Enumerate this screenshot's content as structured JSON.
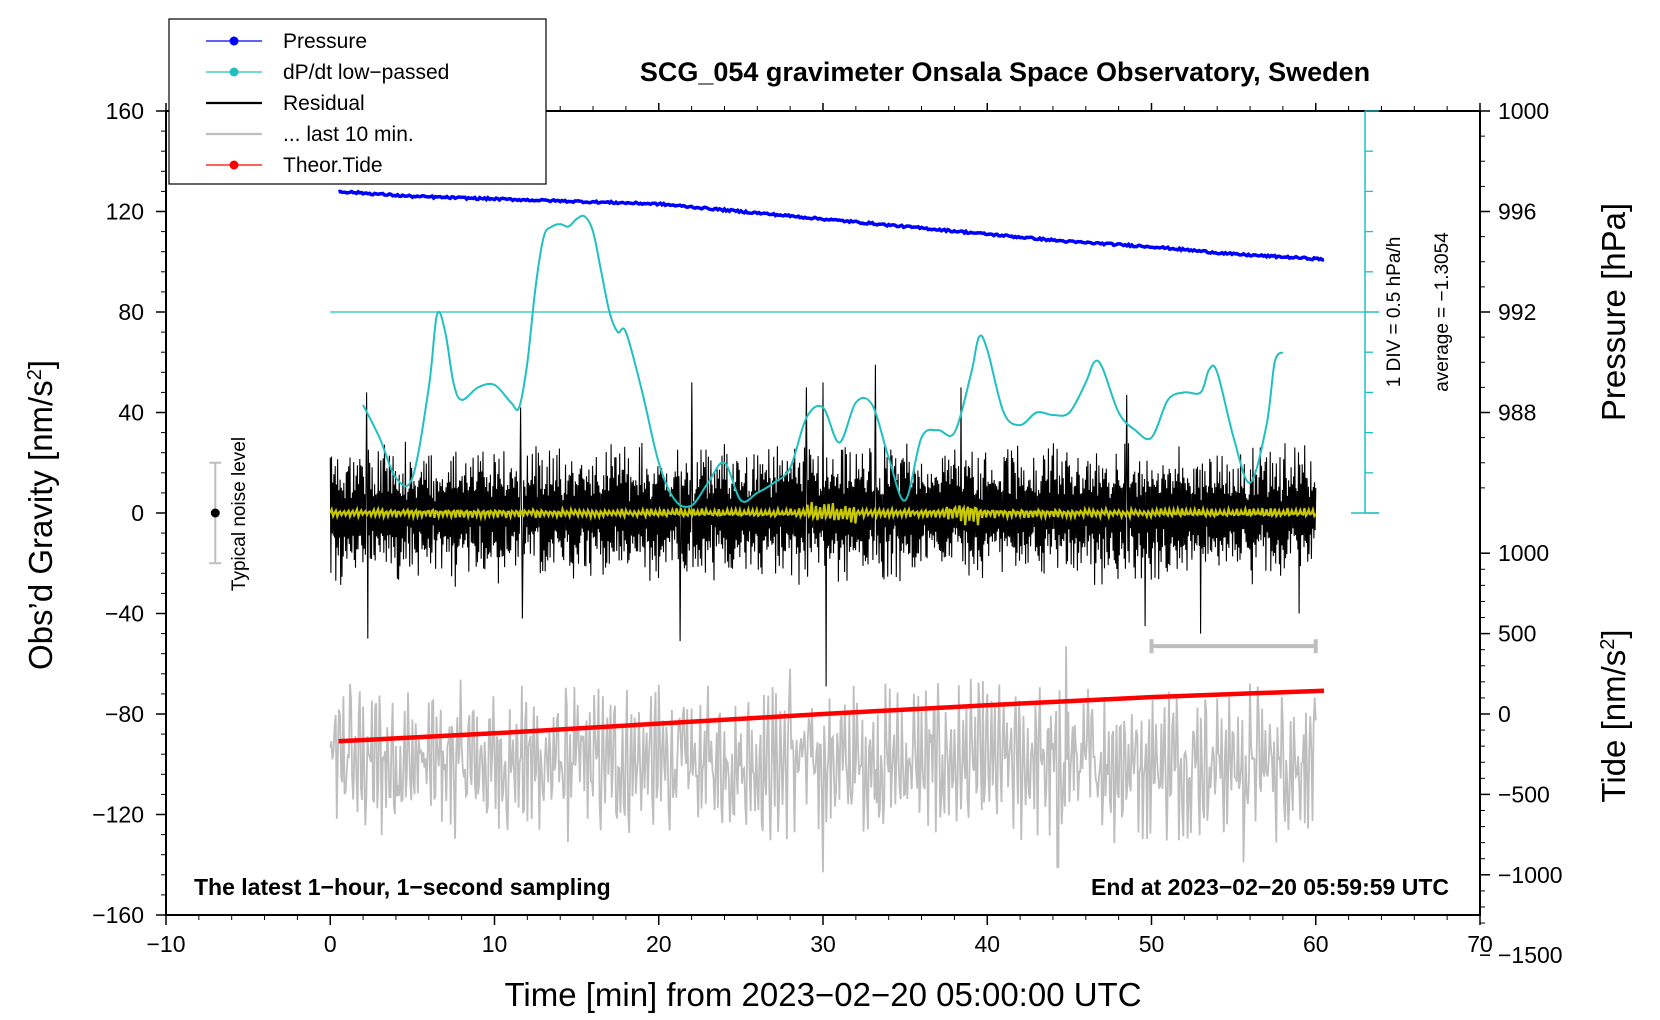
{
  "chart_data": {
    "type": "line",
    "title": "SCG_054 gravimeter Onsala Space Observatory, Sweden",
    "xlabel": "Time [min] from 2023−02−20 05:00:00 UTC",
    "ylabel_left": "Obs’d Gravity [nm/s",
    "ylabel_left_sup": "2",
    "ylabel_left_close": "]",
    "ylabel_pressure": "Pressure [hPa]",
    "ylabel_tide": "Tide [nm/s",
    "ylabel_tide_sup": "2",
    "ylabel_tide_close": "]",
    "xlim": [
      -10,
      70
    ],
    "ylim": [
      -160,
      160
    ],
    "xticks": [
      -10,
      0,
      10,
      20,
      30,
      40,
      50,
      60,
      70
    ],
    "xtick_labels": [
      "−10",
      "0",
      "10",
      "20",
      "30",
      "40",
      "50",
      "60",
      "70"
    ],
    "yticks": [
      -160,
      -120,
      -80,
      -40,
      0,
      40,
      80,
      120,
      160
    ],
    "ytick_labels": [
      "−160",
      "−120",
      "−80",
      "−40",
      "0",
      "40",
      "80",
      "120",
      "160"
    ],
    "pressure_axis": {
      "ticks": [
        988,
        992,
        996,
        1000
      ],
      "labels": [
        "988",
        "992",
        "996",
        "1000"
      ],
      "gravity_equiv_at_988": 40,
      "gravity_per_hPa": 10
    },
    "tide_axis": {
      "ticks": [
        -1500,
        -1000,
        -500,
        0,
        500,
        1000
      ],
      "labels": [
        "−1500",
        "−1000",
        "−500",
        "0",
        "500",
        "1000"
      ],
      "gravity_equiv_at_0": -80,
      "gravity_per_unit": 0.064
    },
    "dpdt_scale": {
      "label": "1 DIV = 0.5 hPa/h",
      "average_label": "average = −1.3054",
      "x": 63,
      "baseline": 0,
      "top": 160,
      "div": 16,
      "average_line": 80
    },
    "legend": [
      {
        "label": "Pressure",
        "color": "#0000ff",
        "marker": true
      },
      {
        "label": "dP/dt low−passed",
        "color": "#20c0c0",
        "marker": true
      },
      {
        "label": "Residual",
        "color": "#000000",
        "marker": false
      },
      {
        "label": "... last 10 min.",
        "color": "#bebebe",
        "marker": false
      },
      {
        "label": "Theor.Tide",
        "color": "#ff0000",
        "marker": true
      }
    ],
    "legend_position": "top-left",
    "noise_label": "Typical noise level",
    "noise_bar": {
      "x": -7,
      "low": -20,
      "high": 20
    },
    "last10_bar": {
      "x_start": 50,
      "x_end": 60,
      "y": -53
    },
    "bottom_left_note": "The latest 1−hour, 1−second sampling",
    "bottom_right_note": "End at 2023−02−20 05:59:59 UTC",
    "series": [
      {
        "name": "Pressure",
        "unit": "hPa",
        "color": "#0000ff",
        "x": [
          0.5,
          5,
          10,
          15,
          20,
          25,
          30,
          35,
          40,
          45,
          50,
          55,
          60.5
        ],
        "y": [
          996.8,
          996.6,
          996.5,
          996.4,
          996.3,
          996.0,
          995.7,
          995.4,
          995.1,
          994.8,
          994.6,
          994.3,
          994.1
        ]
      },
      {
        "name": "dP/dt low-passed",
        "unit": "gravity-equivalent",
        "color": "#20c0c0",
        "x": [
          2,
          3,
          4,
          5,
          6,
          6.5,
          7,
          7.5,
          8,
          9,
          10,
          11,
          11.5,
          12,
          12.5,
          13,
          13.5,
          14,
          14.5,
          15,
          15.5,
          16,
          16.5,
          17,
          17.5,
          18,
          19,
          20,
          21,
          22,
          23,
          24,
          25,
          26,
          27,
          28,
          29,
          30,
          31,
          32,
          33,
          34,
          35,
          36,
          37,
          38,
          39,
          39.5,
          40,
          41,
          42,
          43,
          44,
          45,
          46,
          46.5,
          47,
          48,
          49,
          50,
          51,
          52,
          53,
          53.5,
          54,
          55,
          56,
          57,
          57.5,
          58
        ],
        "y": [
          43,
          30,
          14,
          14,
          50,
          79,
          72,
          52,
          45,
          50,
          51,
          44,
          42,
          60,
          90,
          110,
          114,
          115,
          114,
          117,
          118,
          112,
          96,
          80,
          72,
          72,
          48,
          20,
          5,
          3,
          12,
          20,
          5,
          8,
          12,
          18,
          38,
          42,
          28,
          44,
          43,
          22,
          5,
          30,
          33,
          32,
          55,
          70,
          65,
          40,
          35,
          40,
          39,
          40,
          52,
          60,
          58,
          40,
          33,
          30,
          45,
          48,
          48,
          57,
          56,
          30,
          12,
          35,
          60,
          64
        ]
      },
      {
        "name": "Residual",
        "unit": "nm/s2",
        "color": "#000000",
        "x_range": [
          0,
          60
        ],
        "envelope": 30,
        "spikes": [
          {
            "x": 2.2,
            "y": 48
          },
          {
            "x": 2.3,
            "y": -50
          },
          {
            "x": 11.7,
            "y": -42
          },
          {
            "x": 11.6,
            "y": 42
          },
          {
            "x": 21.3,
            "y": 46
          },
          {
            "x": 21.3,
            "y": -51
          },
          {
            "x": 22.0,
            "y": 52
          },
          {
            "x": 29.0,
            "y": 50
          },
          {
            "x": 30.0,
            "y": 52
          },
          {
            "x": 30.2,
            "y": -69
          },
          {
            "x": 33.2,
            "y": 59
          },
          {
            "x": 38.4,
            "y": 50
          },
          {
            "x": 48.5,
            "y": 47
          },
          {
            "x": 49.6,
            "y": -45
          },
          {
            "x": 53.0,
            "y": -48
          },
          {
            "x": 59.0,
            "y": -40
          }
        ]
      },
      {
        "name": "... last 10 min.",
        "unit": "nm/s2",
        "color": "#bebebe",
        "x_range": [
          0,
          60
        ],
        "center": -99,
        "envelope": 20,
        "extremes": [
          {
            "x": 1.2,
            "y": -68
          },
          {
            "x": 28.0,
            "y": -62
          },
          {
            "x": 30.0,
            "y": -143
          },
          {
            "x": 44.3,
            "y": -141
          },
          {
            "x": 44.8,
            "y": -53
          },
          {
            "x": 55.6,
            "y": -139
          }
        ]
      },
      {
        "name": "Theor.Tide",
        "unit": "nm/s2",
        "color": "#ff0000",
        "x": [
          0.5,
          10,
          20,
          30,
          40,
          50,
          60.5
        ],
        "y": [
          -170,
          -120,
          -60,
          0,
          55,
          105,
          145
        ]
      },
      {
        "name": "Residual low-passed",
        "unit": "nm/s2",
        "color": "#c8c800",
        "x_range": [
          0,
          60
        ],
        "envelope": 2
      }
    ]
  }
}
